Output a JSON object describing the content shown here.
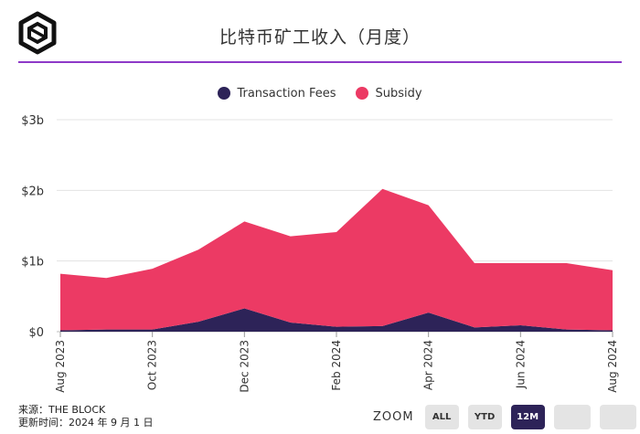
{
  "header": {
    "title": "比特币矿工收入（月度）"
  },
  "legend": [
    {
      "label": "Transaction Fees",
      "color": "#2d2358"
    },
    {
      "label": "Subsidy",
      "color": "#ec3a64"
    }
  ],
  "chart_data": {
    "type": "area",
    "stacked": true,
    "x": [
      "Aug 2023",
      "Sep 2023",
      "Oct 2023",
      "Nov 2023",
      "Dec 2023",
      "Jan 2024",
      "Feb 2024",
      "Mar 2024",
      "Apr 2024",
      "May 2024",
      "Jun 2024",
      "Jul 2024",
      "Aug 2024"
    ],
    "x_tick_labels": [
      "Aug 2023",
      "Oct 2023",
      "Dec 2023",
      "Feb 2024",
      "Apr 2024",
      "Jun 2024",
      "Aug 2024"
    ],
    "x_tick_index": [
      0,
      2,
      4,
      6,
      8,
      10,
      12
    ],
    "y_tick_labels": [
      "$0",
      "$1b",
      "$2b",
      "$3b"
    ],
    "y_tick_values": [
      0,
      1,
      2,
      3
    ],
    "ylim": [
      0,
      3
    ],
    "grid": true,
    "legend_position": "top-center",
    "series": [
      {
        "name": "Transaction Fees",
        "color": "#2d2358",
        "values": [
          0.02,
          0.03,
          0.03,
          0.14,
          0.33,
          0.13,
          0.07,
          0.08,
          0.27,
          0.06,
          0.09,
          0.03,
          0.02
        ]
      },
      {
        "name": "Subsidy",
        "color": "#ec3a64",
        "values": [
          0.8,
          0.73,
          0.86,
          1.02,
          1.23,
          1.22,
          1.34,
          1.94,
          1.52,
          0.91,
          0.88,
          0.94,
          0.85
        ]
      }
    ]
  },
  "footer": {
    "source": "来源：THE BLOCK",
    "updated": "更新时间：2024 年 9 月 1 日"
  },
  "zoom": {
    "label": "ZOOM",
    "buttons": [
      {
        "label": "ALL",
        "active": false
      },
      {
        "label": "YTD",
        "active": false
      },
      {
        "label": "12M",
        "active": true
      },
      {
        "label": "",
        "active": false
      },
      {
        "label": "",
        "active": false
      }
    ]
  }
}
